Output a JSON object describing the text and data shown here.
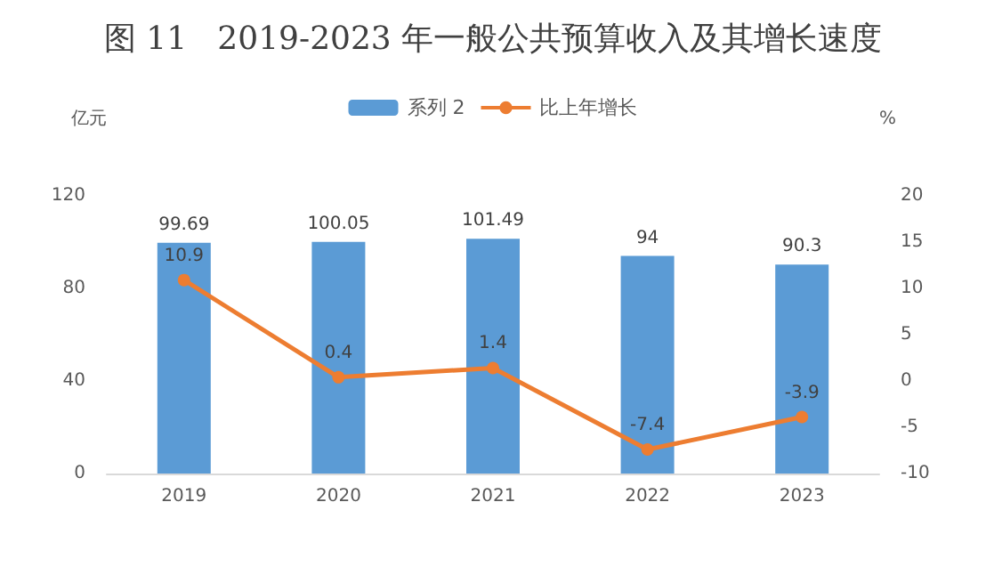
{
  "chart_data": {
    "type": "bar",
    "title": "图 11   2019-2023 年一般公共预算收入及其增长速度",
    "ylabel": "亿元",
    "y2label": "%",
    "categories": [
      "2019",
      "2020",
      "2021",
      "2022",
      "2023"
    ],
    "series": [
      {
        "name": "系列 2",
        "color": "#5b9bd5",
        "values": [
          99.69,
          100.05,
          101.49,
          94,
          90.3
        ]
      },
      {
        "name": "比上年增长",
        "type": "line",
        "axis": "y2",
        "color": "#ed7d31",
        "marker": "circle",
        "values": [
          10.9,
          0.4,
          1.4,
          -7.4,
          -3.9
        ]
      }
    ],
    "ylim": [
      0,
      120
    ],
    "yticks": [
      0,
      40,
      80,
      120
    ],
    "y2lim": [
      -10,
      20
    ],
    "y2ticks": [
      -10,
      -5,
      0,
      5,
      10,
      15,
      20
    ],
    "grid": false,
    "legend": "top",
    "data_labels": true
  }
}
